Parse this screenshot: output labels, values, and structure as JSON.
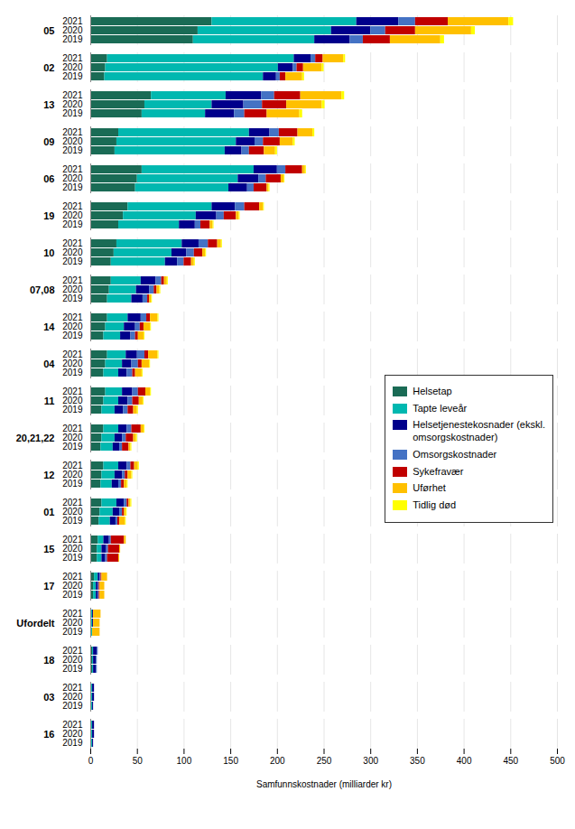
{
  "chart_data": {
    "type": "bar",
    "orientation": "horizontal",
    "stacked": true,
    "xlabel": "Samfunnskostnader (milliarder kr)",
    "xlim": [
      0,
      500
    ],
    "xticks": [
      0,
      50,
      100,
      150,
      200,
      250,
      300,
      350,
      400,
      450,
      500
    ],
    "grid": true,
    "legend": "right",
    "groups": [
      "05",
      "02",
      "13",
      "09",
      "06",
      "19",
      "10",
      "07,08",
      "14",
      "04",
      "11",
      "20,21,22",
      "12",
      "01",
      "15",
      "17",
      "Ufordelt",
      "18",
      "03",
      "16"
    ],
    "categories": [
      "2021",
      "2020",
      "2019",
      "2021",
      "2020",
      "2019",
      "2021",
      "2020",
      "2019",
      "2021",
      "2020",
      "2019",
      "2021",
      "2020",
      "2019",
      "2021",
      "2020",
      "2019",
      "2021",
      "2020",
      "2019",
      "2021",
      "2020",
      "2019",
      "2021",
      "2020",
      "2019",
      "2021",
      "2020",
      "2019",
      "2021",
      "2020",
      "2019",
      "2021",
      "2020",
      "2019",
      "2021",
      "2020",
      "2019",
      "2021",
      "2020",
      "2019",
      "2021",
      "2020",
      "2019",
      "2021",
      "2020",
      "2019",
      "2021",
      "2020",
      "2019",
      "2021",
      "2020",
      "2019",
      "2021",
      "2020",
      "2019",
      "2021",
      "2020",
      "2019"
    ],
    "series": [
      {
        "name": "Helsetap",
        "color": "#1a6b55",
        "values": [
          130,
          115,
          110,
          18,
          16,
          15,
          65,
          58,
          55,
          30,
          28,
          26,
          55,
          50,
          48,
          40,
          35,
          30,
          28,
          25,
          22,
          22,
          20,
          18,
          18,
          16,
          14,
          18,
          16,
          14,
          16,
          14,
          12,
          14,
          12,
          11,
          14,
          12,
          11,
          12,
          10,
          9,
          8,
          7,
          7,
          4,
          3,
          3,
          1,
          1,
          1,
          2,
          2,
          2,
          1,
          1,
          1,
          1,
          1,
          1
        ]
      },
      {
        "name": "Tapte leveår",
        "color": "#00b8b0",
        "values": [
          155,
          143,
          130,
          200,
          185,
          170,
          80,
          72,
          68,
          140,
          128,
          118,
          120,
          108,
          100,
          90,
          78,
          65,
          70,
          62,
          58,
          32,
          29,
          26,
          22,
          20,
          18,
          20,
          18,
          16,
          18,
          16,
          14,
          16,
          14,
          13,
          16,
          14,
          12,
          16,
          14,
          12,
          6,
          5,
          5,
          4,
          3,
          3,
          1,
          1,
          1,
          1,
          1,
          1,
          1,
          1,
          1,
          1,
          1,
          1
        ]
      },
      {
        "name": "Helsetjenestekosnader (ekskl.\nomsorgskostnader)",
        "color": "#00008b",
        "values": [
          45,
          42,
          38,
          18,
          16,
          14,
          38,
          34,
          31,
          22,
          20,
          18,
          25,
          22,
          20,
          25,
          22,
          17,
          18,
          16,
          13,
          16,
          14,
          12,
          14,
          12,
          11,
          12,
          10,
          9,
          11,
          10,
          9,
          9,
          8,
          7,
          9,
          8,
          7,
          8,
          7,
          6,
          6,
          5,
          4,
          2,
          2,
          2,
          1,
          1,
          0,
          4,
          3,
          3,
          2,
          2,
          1,
          2,
          2,
          1
        ]
      },
      {
        "name": "Omsorgskostnader",
        "color": "#4472c4",
        "values": [
          18,
          16,
          14,
          5,
          4,
          4,
          14,
          20,
          11,
          10,
          9,
          8,
          9,
          8,
          7,
          10,
          8,
          6,
          10,
          8,
          7,
          6,
          5,
          5,
          6,
          5,
          5,
          8,
          7,
          6,
          6,
          5,
          5,
          5,
          4,
          3,
          4,
          3,
          3,
          3,
          3,
          2,
          2,
          2,
          2,
          1,
          1,
          1,
          0,
          0,
          0,
          1,
          1,
          1,
          0,
          0,
          0,
          0,
          0,
          0
        ]
      },
      {
        "name": "Sykefravær",
        "color": "#c00000",
        "values": [
          35,
          32,
          29,
          8,
          7,
          6,
          28,
          26,
          24,
          20,
          18,
          16,
          18,
          16,
          14,
          16,
          13,
          10,
          10,
          9,
          8,
          3,
          3,
          2,
          4,
          4,
          3,
          4,
          4,
          3,
          8,
          7,
          6,
          10,
          8,
          7,
          4,
          3,
          3,
          2,
          2,
          2,
          14,
          12,
          12,
          1,
          1,
          1,
          0,
          0,
          0,
          0,
          0,
          0,
          0,
          0,
          0,
          0,
          0,
          0
        ]
      },
      {
        "name": "Uførhet",
        "color": "#ffc000",
        "values": [
          65,
          60,
          54,
          22,
          20,
          18,
          44,
          38,
          35,
          16,
          14,
          12,
          3,
          3,
          2,
          4,
          3,
          3,
          4,
          3,
          3,
          3,
          3,
          2,
          8,
          7,
          6,
          10,
          8,
          7,
          5,
          4,
          4,
          3,
          3,
          2,
          4,
          4,
          3,
          2,
          2,
          6,
          2,
          1,
          1,
          6,
          5,
          5,
          8,
          7,
          8,
          0,
          0,
          0,
          0,
          0,
          0,
          0,
          0,
          0
        ]
      },
      {
        "name": "Tidlig død",
        "color": "#ffff00",
        "values": [
          5,
          4,
          4,
          2,
          2,
          2,
          3,
          3,
          3,
          2,
          2,
          2,
          1,
          1,
          1,
          1,
          1,
          1,
          1,
          1,
          1,
          1,
          1,
          1,
          1,
          1,
          1,
          1,
          1,
          1,
          1,
          1,
          1,
          1,
          1,
          1,
          1,
          1,
          1,
          1,
          1,
          1,
          0,
          0,
          0,
          0,
          0,
          0,
          0,
          0,
          0,
          0,
          0,
          0,
          0,
          0,
          0,
          0,
          0,
          0
        ]
      }
    ]
  }
}
